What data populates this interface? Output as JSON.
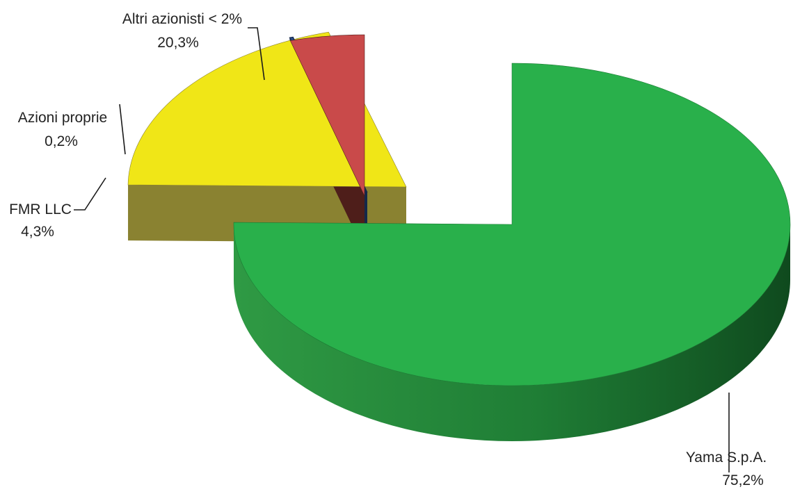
{
  "chart_data": {
    "type": "pie",
    "style": "3d-exploded",
    "categories": [
      "Yama S.p.A.",
      "Altri azionisti < 2%",
      "Azioni proprie",
      "FMR LLC"
    ],
    "values": [
      75.2,
      20.3,
      0.2,
      4.3
    ],
    "value_labels": [
      "75,2%",
      "20,3%",
      "0,2%",
      "4,3%"
    ],
    "unit": "%",
    "colors": {
      "Yama S.p.A.": "#29b04b",
      "Altri azionisti < 2%": "#f0e617",
      "Azioni proprie": "#2a4a8a",
      "FMR LLC": "#c94a4a"
    },
    "side_colors": {
      "Yama S.p.A.": "#1b7a33",
      "Altri azionisti < 2%": "#8a8231",
      "Azioni proprie": "#14284a",
      "FMR LLC": "#4e1e1a"
    },
    "title": "",
    "legend": "none",
    "labels_outside": true
  }
}
